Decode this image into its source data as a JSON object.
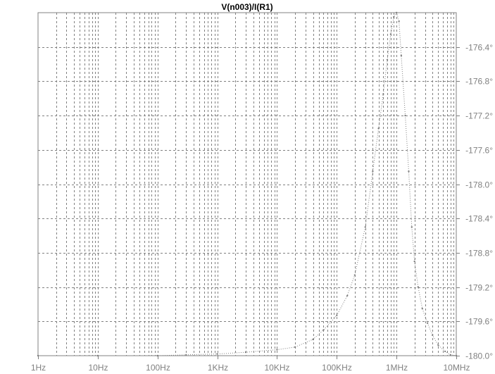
{
  "chart_data": {
    "type": "line",
    "title": "V(n003)/I(R1)",
    "xlabel": "",
    "ylabel": "",
    "x_scale": "log",
    "xlim": [
      1,
      10000000
    ],
    "ylim": [
      -180.0,
      -176.0
    ],
    "grid": true,
    "x_ticks": [
      {
        "value": 1,
        "label": "1Hz"
      },
      {
        "value": 10,
        "label": "10Hz"
      },
      {
        "value": 100,
        "label": "100Hz"
      },
      {
        "value": 1000,
        "label": "1KHz"
      },
      {
        "value": 10000,
        "label": "10KHz"
      },
      {
        "value": 100000,
        "label": "100KHz"
      },
      {
        "value": 1000000,
        "label": "1MHz"
      },
      {
        "value": 10000000,
        "label": "10MHz"
      }
    ],
    "y_ticks": [
      {
        "value": -176.4,
        "label": "-176.4°"
      },
      {
        "value": -176.8,
        "label": "-176.8°"
      },
      {
        "value": -177.2,
        "label": "-177.2°"
      },
      {
        "value": -177.6,
        "label": "-177.6°"
      },
      {
        "value": -178.0,
        "label": "-178.0°"
      },
      {
        "value": -178.4,
        "label": "-178.4°"
      },
      {
        "value": -178.8,
        "label": "-178.8°"
      },
      {
        "value": -179.2,
        "label": "-179.2°"
      },
      {
        "value": -179.6,
        "label": "-179.6°"
      },
      {
        "value": -180.0,
        "label": "-180.0°"
      }
    ],
    "series": [
      {
        "color": "#808080",
        "points": [
          [
            1,
            -180.0
          ],
          [
            10,
            -180.0
          ],
          [
            100,
            -180.0
          ],
          [
            300,
            -179.99
          ],
          [
            1000,
            -179.98
          ],
          [
            3000,
            -179.96
          ],
          [
            10000,
            -179.93
          ],
          [
            20000,
            -179.9
          ],
          [
            40000,
            -179.81
          ],
          [
            60000,
            -179.7
          ],
          [
            100000,
            -179.53
          ],
          [
            150000,
            -179.3
          ],
          [
            200000,
            -179.06
          ],
          [
            300000,
            -178.5
          ],
          [
            400000,
            -177.85
          ],
          [
            500000,
            -177.35
          ],
          [
            600000,
            -176.95
          ],
          [
            700000,
            -176.55
          ],
          [
            800000,
            -176.25
          ],
          [
            900000,
            -176.05
          ],
          [
            1000000,
            -176.0
          ],
          [
            1100000,
            -176.1
          ],
          [
            1200000,
            -176.5
          ],
          [
            1400000,
            -177.2
          ],
          [
            1600000,
            -177.85
          ],
          [
            1800000,
            -178.5
          ],
          [
            2000000,
            -178.9
          ],
          [
            2300000,
            -179.2
          ],
          [
            2700000,
            -179.45
          ],
          [
            3300000,
            -179.62
          ],
          [
            4000000,
            -179.76
          ],
          [
            5000000,
            -179.88
          ],
          [
            6500000,
            -179.95
          ],
          [
            8000000,
            -179.99
          ],
          [
            10000000,
            -180.0
          ]
        ]
      }
    ]
  }
}
